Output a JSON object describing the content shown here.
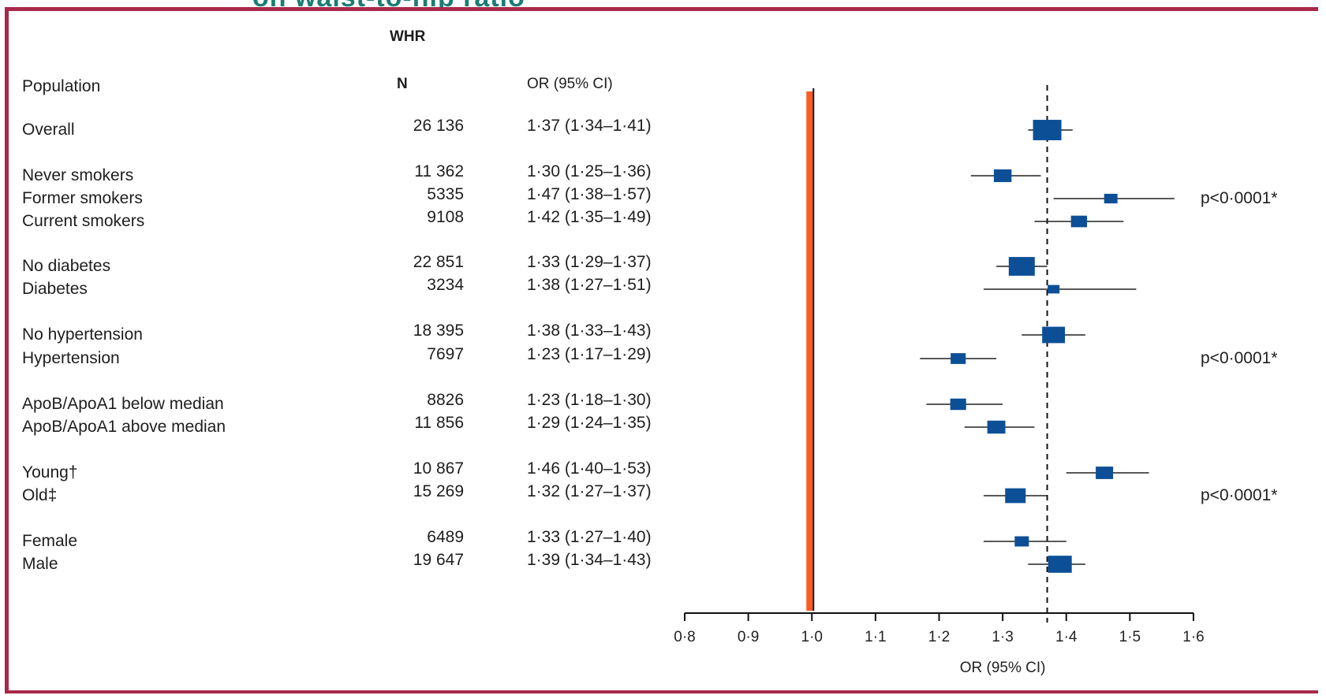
{
  "top_title_fragment": "on waist-to-hip ratio",
  "headers": {
    "group": "WHR",
    "population": "Population",
    "n": "N",
    "or": "OR (95% CI)"
  },
  "chart_data": {
    "type": "forest",
    "xlabel": "OR (95% CI)",
    "xlim": [
      0.8,
      1.6
    ],
    "xticks": [
      "0·8",
      "0·9",
      "1·0",
      "1·1",
      "1·2",
      "1·3",
      "1·4",
      "1·5",
      "1·6"
    ],
    "xtick_values": [
      0.8,
      0.9,
      1.0,
      1.1,
      1.2,
      1.3,
      1.4,
      1.5,
      1.6
    ],
    "reference_line": 1.0,
    "overall_line": 1.37,
    "reference_color": "#ff5a1f",
    "marker_color": "#0c4f96",
    "rows": [
      {
        "label": "Overall",
        "n": "26 136",
        "or_text": "1·37 (1·34–1·41)",
        "or": 1.37,
        "lo": 1.34,
        "hi": 1.41,
        "weight": 26136,
        "p": ""
      },
      {
        "label": "Never smokers",
        "n": "11 362",
        "or_text": "1·30 (1·25–1·36)",
        "or": 1.3,
        "lo": 1.25,
        "hi": 1.36,
        "weight": 11362,
        "p": ""
      },
      {
        "label": "Former smokers",
        "n": "5335",
        "or_text": "1·47 (1·38–1·57)",
        "or": 1.47,
        "lo": 1.38,
        "hi": 1.57,
        "weight": 5335,
        "p": "p<0·0001*"
      },
      {
        "label": "Current smokers",
        "n": "9108",
        "or_text": "1·42 (1·35–1·49)",
        "or": 1.42,
        "lo": 1.35,
        "hi": 1.49,
        "weight": 9108,
        "p": ""
      },
      {
        "label": "No diabetes",
        "n": "22 851",
        "or_text": "1·33 (1·29–1·37)",
        "or": 1.33,
        "lo": 1.29,
        "hi": 1.37,
        "weight": 22851,
        "p": ""
      },
      {
        "label": "Diabetes",
        "n": "3234",
        "or_text": "1·38 (1·27–1·51)",
        "or": 1.38,
        "lo": 1.27,
        "hi": 1.51,
        "weight": 3234,
        "p": ""
      },
      {
        "label": "No hypertension",
        "n": "18 395",
        "or_text": "1·38 (1·33–1·43)",
        "or": 1.38,
        "lo": 1.33,
        "hi": 1.43,
        "weight": 18395,
        "p": ""
      },
      {
        "label": "Hypertension",
        "n": "7697",
        "or_text": "1·23 (1·17–1·29)",
        "or": 1.23,
        "lo": 1.17,
        "hi": 1.29,
        "weight": 7697,
        "p": "p<0·0001*"
      },
      {
        "label": "ApoB/ApoA1 below median",
        "n": "8826",
        "or_text": "1·23 (1·18–1·30)",
        "or": 1.23,
        "lo": 1.18,
        "hi": 1.3,
        "weight": 8826,
        "p": ""
      },
      {
        "label": "ApoB/ApoA1 above median",
        "n": "11 856",
        "or_text": "1·29 (1·24–1·35)",
        "or": 1.29,
        "lo": 1.24,
        "hi": 1.35,
        "weight": 11856,
        "p": ""
      },
      {
        "label": "Young†",
        "n": "10 867",
        "or_text": "1·46 (1·40–1·53)",
        "or": 1.46,
        "lo": 1.4,
        "hi": 1.53,
        "weight": 10867,
        "p": ""
      },
      {
        "label": "Old‡",
        "n": "15 269",
        "or_text": "1·32 (1·27–1·37)",
        "or": 1.32,
        "lo": 1.27,
        "hi": 1.37,
        "weight": 15269,
        "p": "p<0·0001*"
      },
      {
        "label": "Female",
        "n": "6489",
        "or_text": "1·33 (1·27–1·40)",
        "or": 1.33,
        "lo": 1.27,
        "hi": 1.4,
        "weight": 6489,
        "p": ""
      },
      {
        "label": "Male",
        "n": "19 647",
        "or_text": "1·39 (1·34–1·43)",
        "or": 1.39,
        "lo": 1.34,
        "hi": 1.43,
        "weight": 19647,
        "p": ""
      }
    ]
  }
}
